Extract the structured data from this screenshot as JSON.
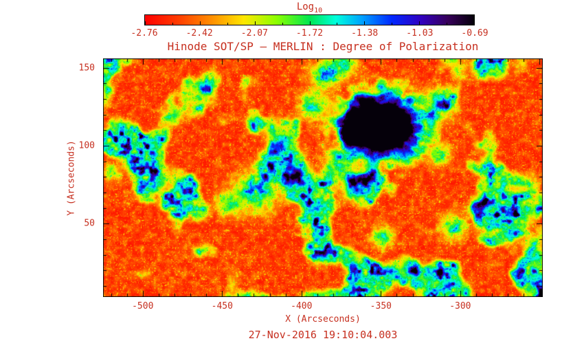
{
  "figure": {
    "background": "#ffffff",
    "text_color": "#c62f1f",
    "axis_color": "#000000"
  },
  "chart_data": {
    "type": "heatmap",
    "title": "Hinode SOT/SP — MERLIN : Degree of Polarization",
    "xlabel": "X (Arcseconds)",
    "ylabel": "Y (Arcseconds)",
    "footer_timestamp": "27-Nov-2016 19:10:04.003",
    "colorbar_title": "Log",
    "colorbar_title_sub": "10",
    "colorbar_tick_labels": [
      "-2.76",
      "-2.42",
      "-2.07",
      "-1.72",
      "-1.38",
      "-1.03",
      "-0.69"
    ],
    "colorbar_range": [
      -2.76,
      -0.69
    ],
    "xlim": [
      -525,
      -248
    ],
    "ylim": [
      3,
      156
    ],
    "xticks": [
      -500,
      -450,
      -400,
      -350,
      -300
    ],
    "yticks": [
      50,
      100,
      150
    ],
    "minor_tick_step": 10,
    "value_description": "log10 degree of polarization: quiet sun ~ -2.7..-2.3 (red/orange), magnetic network patches ~ -2.0..-1.3 (green/cyan/blue), sunspot penumbra ~ -1.2 (blue), umbra up to -0.69 (violet/black)",
    "colormap": [
      {
        "p": 0.0,
        "c": [
          255,
          0,
          0
        ]
      },
      {
        "p": 0.1,
        "c": [
          255,
          60,
          0
        ]
      },
      {
        "p": 0.2,
        "c": [
          255,
          140,
          0
        ]
      },
      {
        "p": 0.3,
        "c": [
          255,
          230,
          0
        ]
      },
      {
        "p": 0.4,
        "c": [
          140,
          255,
          0
        ]
      },
      {
        "p": 0.5,
        "c": [
          0,
          230,
          80
        ]
      },
      {
        "p": 0.58,
        "c": [
          0,
          255,
          220
        ]
      },
      {
        "p": 0.66,
        "c": [
          0,
          160,
          255
        ]
      },
      {
        "p": 0.75,
        "c": [
          0,
          40,
          255
        ]
      },
      {
        "p": 0.84,
        "c": [
          50,
          0,
          190
        ]
      },
      {
        "p": 0.92,
        "c": [
          55,
          0,
          90
        ]
      },
      {
        "p": 1.0,
        "c": [
          5,
          0,
          10
        ]
      }
    ],
    "features": {
      "sunspot": {
        "x": -349,
        "y": 112,
        "umbra_radius": 14,
        "penumbra_radius": 26,
        "pore": {
          "x": -367,
          "y": 108,
          "radius": 7
        }
      },
      "plage_regions": [
        {
          "x": -428,
          "y": 71,
          "r": 13,
          "s": 0.6
        },
        {
          "x": -446,
          "y": 63,
          "r": 8,
          "s": 0.4
        },
        {
          "x": -404,
          "y": 81,
          "r": 8,
          "s": 0.5
        },
        {
          "x": -414,
          "y": 98,
          "r": 7,
          "s": 0.4
        },
        {
          "x": -393,
          "y": 125,
          "r": 9,
          "s": 0.5
        },
        {
          "x": -386,
          "y": 145,
          "r": 9,
          "s": 0.55
        },
        {
          "x": -374,
          "y": 152,
          "r": 8,
          "s": 0.5
        },
        {
          "x": -376,
          "y": 90,
          "r": 9,
          "s": 0.5
        },
        {
          "x": -362,
          "y": 78,
          "r": 8,
          "s": 0.45
        },
        {
          "x": -349,
          "y": 41,
          "r": 7,
          "s": 0.45
        },
        {
          "x": -330,
          "y": 21,
          "r": 6,
          "s": 0.4
        },
        {
          "x": -313,
          "y": 94,
          "r": 7,
          "s": 0.45
        },
        {
          "x": -304,
          "y": 48,
          "r": 8,
          "s": 0.55
        },
        {
          "x": -287,
          "y": 61,
          "r": 6,
          "s": 0.4
        },
        {
          "x": -315,
          "y": 123,
          "r": 8,
          "s": 0.45
        },
        {
          "x": -519,
          "y": 83,
          "r": 6,
          "s": 0.35
        },
        {
          "x": -483,
          "y": 118,
          "r": 6,
          "s": 0.35
        }
      ]
    }
  }
}
